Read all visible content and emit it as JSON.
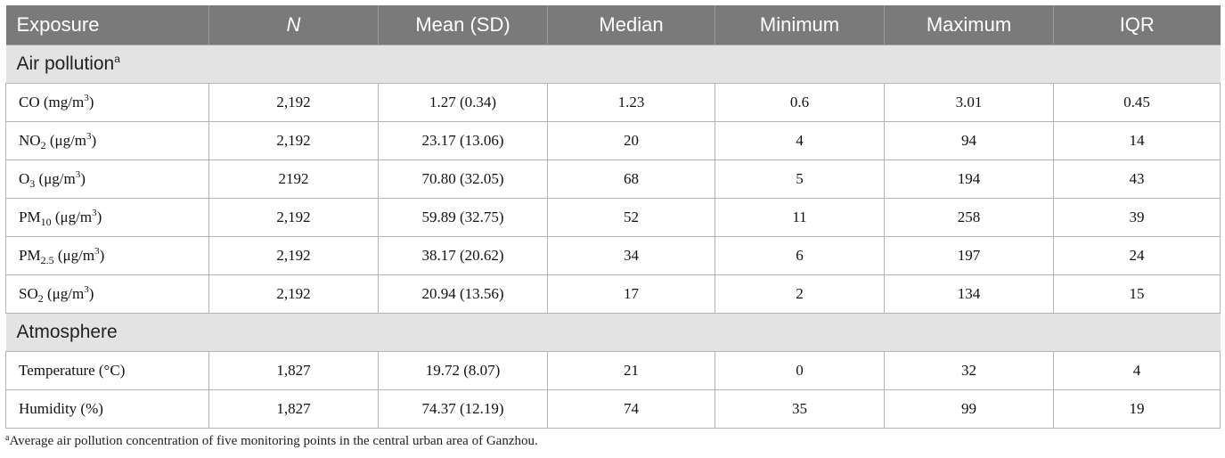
{
  "headers": [
    "Exposure",
    "N",
    "Mean (SD)",
    "Median",
    "Minimum",
    "Maximum",
    "IQR"
  ],
  "sections": [
    {
      "title": "Air pollution",
      "title_sup": "a"
    },
    {
      "title": "Atmosphere"
    }
  ],
  "rows": {
    "co": {
      "label": "CO (mg/m",
      "unit_sup": "3",
      "unit_close": ")",
      "values": [
        "2,192",
        "1.27 (0.34)",
        "1.23",
        "0.6",
        "3.01",
        "0.45"
      ]
    },
    "no2": {
      "label": "NO",
      "label_sub": "2",
      "unit": " (μg/m",
      "unit_sup": "3",
      "unit_close": ")",
      "values": [
        "2,192",
        "23.17 (13.06)",
        "20",
        "4",
        "94",
        "14"
      ]
    },
    "o3": {
      "label": "O",
      "label_sub": "3",
      "unit": " (μg/m",
      "unit_sup": "3",
      "unit_close": ")",
      "values": [
        "2192",
        "70.80 (32.05)",
        "68",
        "5",
        "194",
        "43"
      ]
    },
    "pm10": {
      "label": "PM",
      "label_sub": "10",
      "unit": " (μg/m",
      "unit_sup": "3",
      "unit_close": ")",
      "values": [
        "2,192",
        "59.89 (32.75)",
        "52",
        "11",
        "258",
        "39"
      ]
    },
    "pm25": {
      "label": "PM",
      "label_sub": "2.5",
      "unit": " (μg/m",
      "unit_sup": "3",
      "unit_close": ")",
      "values": [
        "2,192",
        "38.17 (20.62)",
        "34",
        "6",
        "197",
        "24"
      ]
    },
    "so2": {
      "label": "SO",
      "label_sub": "2",
      "unit": " (μg/m",
      "unit_sup": "3",
      "unit_close": ")",
      "values": [
        "2,192",
        "20.94 (13.56)",
        "17",
        "2",
        "134",
        "15"
      ]
    },
    "temp": {
      "label": "Temperature (°C)",
      "values": [
        "1,827",
        "19.72 (8.07)",
        "21",
        "0",
        "32",
        "4"
      ]
    },
    "hum": {
      "label": "Humidity (%)",
      "values": [
        "1,827",
        "74.37 (12.19)",
        "74",
        "35",
        "99",
        "19"
      ]
    }
  },
  "footnote": {
    "marker": "a",
    "text": "Average air pollution concentration of five monitoring points in the central urban area of Ganzhou."
  }
}
